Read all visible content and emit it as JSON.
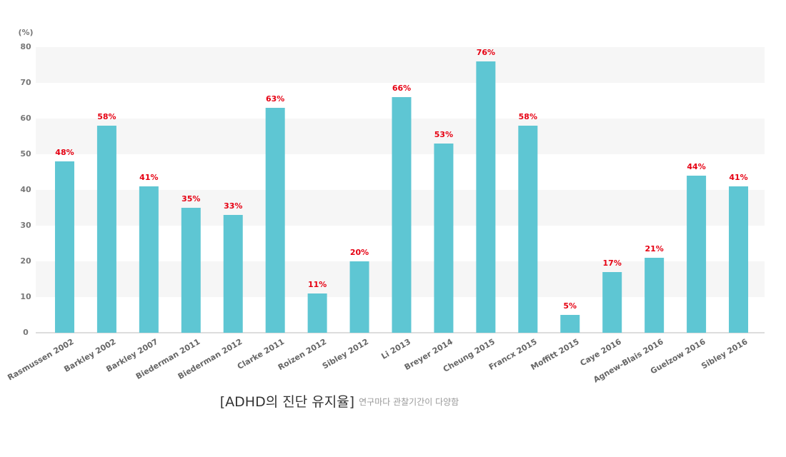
{
  "chart_data": {
    "type": "bar",
    "title": "[ADHD의 진단 유지율]",
    "subtitle": "연구마다 관찰기간이 다양함",
    "y_label": "(%)",
    "categories": [
      "Rasmussen 2002",
      "Barkley 2002",
      "Barkley 2007",
      "Biederman 2011",
      "Biederman 2012",
      "Clarke 2011",
      "Roizen 2012",
      "Sibley 2012",
      "Li 2013",
      "Breyer 2014",
      "Cheung 2015",
      "Francx 2015",
      "Moffitt 2015",
      "Caye 2016",
      "Agnew-Blais 2016",
      "Guelzow 2016",
      "Sibley 2016"
    ],
    "values": [
      48,
      58,
      41,
      35,
      33,
      63,
      11,
      20,
      66,
      53,
      76,
      58,
      5,
      17,
      21,
      44,
      41
    ],
    "value_labels": [
      "48%",
      "58%",
      "41%",
      "35%",
      "33%",
      "63%",
      "11%",
      "20%",
      "66%",
      "53%",
      "76%",
      "58%",
      "5%",
      "17%",
      "21%",
      "44%",
      "41%"
    ],
    "color": "#5ec6d3",
    "ylim": [
      0,
      80
    ],
    "yticks": [
      0,
      10,
      20,
      30,
      40,
      50,
      60,
      70,
      80
    ],
    "grid": true
  }
}
